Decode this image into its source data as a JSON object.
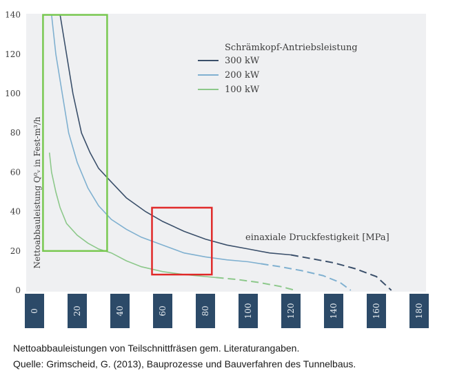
{
  "caption": {
    "line1": "Nettoabbauleistungen von Teilschnittfräsen gem. Literaturangaben.",
    "line2": "Quelle: Grimscheid, G. (2013), Bauprozesse und Bauverfahren des Tunnelbaus."
  },
  "chart_data": {
    "type": "line",
    "title": "",
    "ylabel": "Nettoabbauleistung Q⁰ᵥ in Fest-m³/h",
    "xlabel": "einaxiale Druckfestigkeit [MPa]",
    "xlim": [
      0,
      190
    ],
    "ylim": [
      0,
      140
    ],
    "x_ticks": [
      "0",
      "20",
      "40",
      "60",
      "80",
      "100",
      "120",
      "140",
      "160",
      "180"
    ],
    "y_ticks": [
      "0",
      "20",
      "40",
      "60",
      "80",
      "100",
      "120",
      "140"
    ],
    "legend_title": "Schrämkopf-Antriebsleistung",
    "legend_position": "top-right",
    "grid": false,
    "series": [
      {
        "name": "300 kW",
        "color": "#3a4f6a",
        "solid": [
          [
            12,
            140
          ],
          [
            15,
            120
          ],
          [
            18,
            100
          ],
          [
            22,
            80
          ],
          [
            26,
            70
          ],
          [
            30,
            62
          ],
          [
            36,
            55
          ],
          [
            43,
            47
          ],
          [
            52,
            40
          ],
          [
            60,
            35
          ],
          [
            70,
            30
          ],
          [
            80,
            26
          ],
          [
            90,
            23
          ],
          [
            100,
            21
          ],
          [
            110,
            19
          ],
          [
            120,
            18
          ]
        ],
        "dashed": [
          [
            120,
            18
          ],
          [
            130,
            16
          ],
          [
            140,
            14
          ],
          [
            150,
            11
          ],
          [
            160,
            7
          ],
          [
            167,
            0
          ]
        ]
      },
      {
        "name": "200 kW",
        "color": "#7fb0d0",
        "solid": [
          [
            8,
            140
          ],
          [
            10,
            120
          ],
          [
            13,
            100
          ],
          [
            16,
            80
          ],
          [
            20,
            65
          ],
          [
            25,
            52
          ],
          [
            30,
            43
          ],
          [
            36,
            36
          ],
          [
            43,
            31
          ],
          [
            50,
            27
          ],
          [
            60,
            23
          ],
          [
            70,
            19
          ],
          [
            80,
            17
          ],
          [
            90,
            15.5
          ],
          [
            100,
            14.5
          ],
          [
            106,
            13.5
          ]
        ],
        "dashed": [
          [
            106,
            13.5
          ],
          [
            115,
            12
          ],
          [
            125,
            10
          ],
          [
            135,
            7.5
          ],
          [
            143,
            4
          ],
          [
            148,
            0
          ]
        ]
      },
      {
        "name": "100 kW",
        "color": "#8cc88a",
        "solid": [
          [
            7,
            70
          ],
          [
            8,
            60
          ],
          [
            10,
            50
          ],
          [
            12,
            42
          ],
          [
            15,
            34
          ],
          [
            20,
            28
          ],
          [
            25,
            24
          ],
          [
            30,
            21
          ],
          [
            36,
            19
          ],
          [
            43,
            15
          ],
          [
            50,
            12
          ],
          [
            60,
            9.5
          ],
          [
            70,
            8
          ],
          [
            80,
            7
          ],
          [
            85,
            6.5
          ]
        ],
        "dashed": [
          [
            85,
            6.5
          ],
          [
            95,
            5.5
          ],
          [
            105,
            4
          ],
          [
            115,
            2
          ],
          [
            122,
            0
          ]
        ]
      }
    ],
    "highlight_boxes": [
      {
        "color": "#78c850",
        "x_range": [
          4,
          34
        ],
        "y_range": [
          20,
          140
        ]
      },
      {
        "color": "#e02828",
        "x_range": [
          55,
          83
        ],
        "y_range": [
          8,
          42
        ]
      }
    ]
  }
}
